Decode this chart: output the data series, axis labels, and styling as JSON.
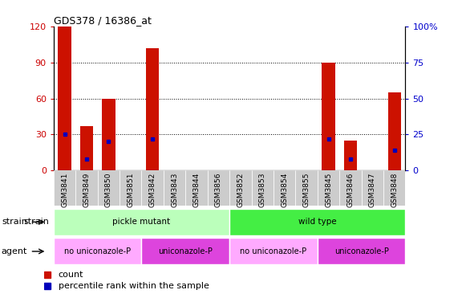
{
  "title": "GDS378 / 16386_at",
  "samples": [
    "GSM3841",
    "GSM3849",
    "GSM3850",
    "GSM3851",
    "GSM3842",
    "GSM3843",
    "GSM3844",
    "GSM3856",
    "GSM3852",
    "GSM3853",
    "GSM3854",
    "GSM3855",
    "GSM3845",
    "GSM3846",
    "GSM3847",
    "GSM3848"
  ],
  "counts": [
    120,
    37,
    60,
    0,
    102,
    0,
    0,
    0,
    0,
    0,
    0,
    0,
    90,
    25,
    0,
    65
  ],
  "percentiles": [
    25,
    8,
    20,
    0,
    22,
    0,
    0,
    0,
    0,
    0,
    0,
    0,
    22,
    8,
    0,
    14
  ],
  "left_yticks": [
    0,
    30,
    60,
    90,
    120
  ],
  "right_yticks": [
    0,
    25,
    50,
    75,
    100
  ],
  "ylim_left": [
    0,
    120
  ],
  "ylim_right": [
    0,
    100
  ],
  "bar_color": "#cc1100",
  "dot_color": "#0000bb",
  "strain_groups": [
    {
      "label": "pickle mutant",
      "start": 0,
      "end": 8,
      "color": "#bbffbb"
    },
    {
      "label": "wild type",
      "start": 8,
      "end": 16,
      "color": "#44ee44"
    }
  ],
  "agent_groups": [
    {
      "label": "no uniconazole-P",
      "start": 0,
      "end": 4,
      "color": "#ffaaff"
    },
    {
      "label": "uniconazole-P",
      "start": 4,
      "end": 8,
      "color": "#dd44dd"
    },
    {
      "label": "no uniconazole-P",
      "start": 8,
      "end": 12,
      "color": "#ffaaff"
    },
    {
      "label": "uniconazole-P",
      "start": 12,
      "end": 16,
      "color": "#dd44dd"
    }
  ],
  "tick_color_left": "#cc0000",
  "tick_color_right": "#0000cc",
  "xticklabel_bg": "#cccccc"
}
